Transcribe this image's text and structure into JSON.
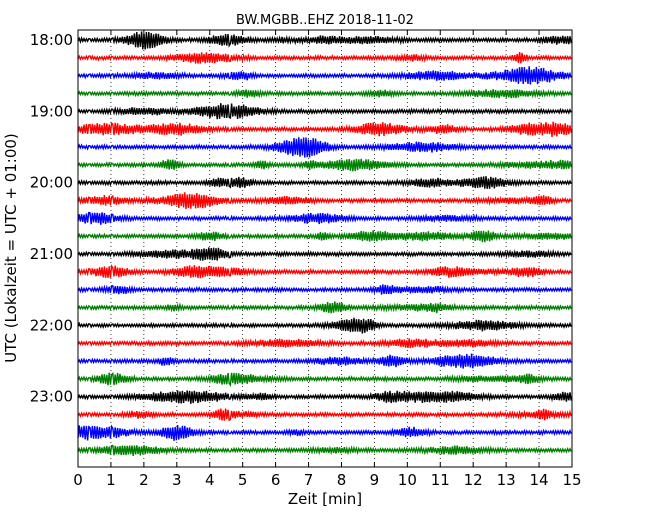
{
  "chart_data": {
    "type": "line",
    "title": "BW.MGBB..EHZ 2018-11-02",
    "xlabel": "Zeit  [min]",
    "ylabel": "UTC (Lokalzeit = UTC + 01:00)",
    "xlim": [
      0,
      15
    ],
    "x_ticks": [
      "0",
      "1",
      "2",
      "3",
      "4",
      "5",
      "6",
      "7",
      "8",
      "9",
      "10",
      "11",
      "12",
      "13",
      "14",
      "15"
    ],
    "y_tick_labels": [
      "18:00",
      "19:00",
      "20:00",
      "21:00",
      "22:00",
      "23:00"
    ],
    "y_tick_rows": [
      0,
      4,
      8,
      12,
      16,
      20
    ],
    "rows": 24,
    "row_minutes": 15,
    "start_time": "18:00",
    "trace_colors": [
      "#000000",
      "#ff0000",
      "#0000ff",
      "#008000"
    ],
    "grid": "vertical dotted lines at each minute"
  }
}
